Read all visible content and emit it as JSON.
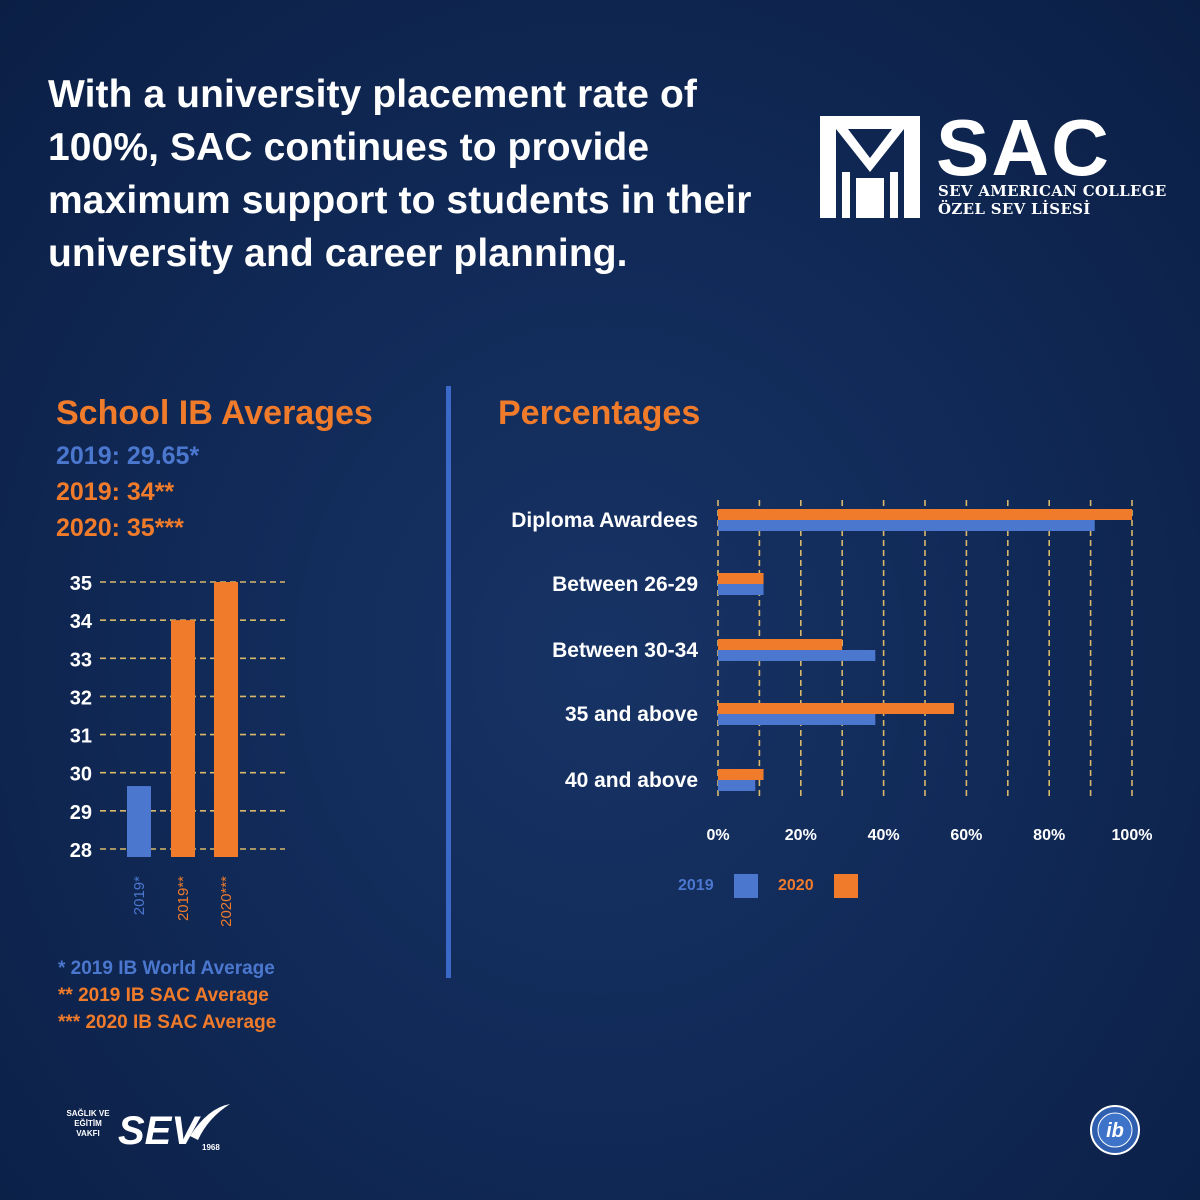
{
  "headline": "With a university placement rate of 100%, SAC continues to provide maximum support to students in their university and career planning.",
  "logo": {
    "word": "SAC",
    "line1": "SEV AMERICAN COLLEGE",
    "line2": "ÖZEL SEV LİSESİ"
  },
  "left": {
    "title": "School IB Averages",
    "averages": [
      {
        "text": "2019: 29.65*",
        "color": "#4b77cf"
      },
      {
        "text": "2019: 34**",
        "color": "#f07b2a"
      },
      {
        "text": "2020: 35***",
        "color": "#f07b2a"
      }
    ],
    "footnotes": [
      {
        "text": "* 2019 IB World Average",
        "color": "#4b77cf"
      },
      {
        "text": "** 2019 IB SAC Average",
        "color": "#f07b2a"
      },
      {
        "text": "*** 2020 IB SAC Average",
        "color": "#f07b2a"
      }
    ]
  },
  "right": {
    "title": "Percentages"
  },
  "colors": {
    "blue": "#4b77cf",
    "orange": "#f07b2a",
    "grid": "#d9b86a"
  },
  "chart_data": [
    {
      "type": "bar",
      "title": "School IB Averages",
      "categories": [
        "2019*",
        "2019**",
        "2020***"
      ],
      "values": [
        29.65,
        34,
        35
      ],
      "bar_colors": [
        "#4b77cf",
        "#f07b2a",
        "#f07b2a"
      ],
      "ylim": [
        28,
        35
      ],
      "yticks": [
        "28",
        "29",
        "30",
        "31",
        "32",
        "33",
        "34",
        "35"
      ],
      "grid": true
    },
    {
      "type": "bar",
      "orientation": "horizontal",
      "title": "Percentages",
      "categories": [
        "Diploma Awardees",
        "Between 26-29",
        "Between 30-34",
        "35 and above",
        "40 and above"
      ],
      "series": [
        {
          "name": "2019",
          "color": "#4b77cf",
          "values": [
            91,
            11,
            38,
            38,
            9
          ]
        },
        {
          "name": "2020",
          "color": "#f07b2a",
          "values": [
            100,
            11,
            30,
            57,
            11
          ]
        }
      ],
      "xlim": [
        0,
        100
      ],
      "xticks": [
        "0%",
        "20%",
        "40%",
        "60%",
        "80%",
        "100%"
      ],
      "grid": true,
      "legend": "bottom"
    }
  ]
}
